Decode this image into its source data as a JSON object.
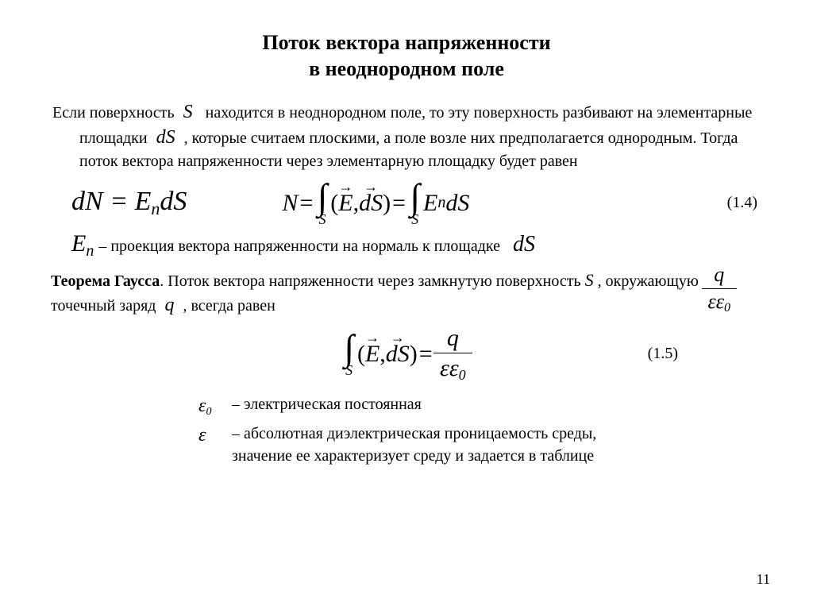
{
  "title_line1": "Поток вектора напряженности",
  "title_line2": "в неоднородном поле",
  "intro_a": "Если поверхность",
  "sym_S": "S",
  "intro_b": "находится в неоднородном поле, то эту поверхность разбивают на элементарные площадки",
  "sym_dS": "dS",
  "intro_c": ", которые считаем плоскими, а поле возле них предполагается однородным. Тогда поток вектора напряженности через элементарную площадку будет равен",
  "eq_a_lhs": "dN",
  "eq_a_eq": " = ",
  "eq_a_rhs_E": "E",
  "eq_a_rhs_sub": "n",
  "eq_a_rhs_dS": "dS",
  "eq_b_N": "N",
  "eq_b_eq1": " = ",
  "int_limit": "S",
  "eq_b_vecE": "E",
  "eq_b_vecdS": "dS",
  "eq_b_comma": ", ",
  "eq_b_paren_open": "(",
  "eq_b_paren_close": ")",
  "eq_b_eq2": " = ",
  "eq_b_En_E": "E",
  "eq_b_En_sub": "n",
  "eq_b_dS": "dS",
  "eqnum_14": "(1.4)",
  "En_E": "E",
  "En_sub": "n",
  "En_text": "– проекция вектора напряженности на нормаль  к площадке",
  "En_dS": "dS",
  "gauss_label": "Теорема Гаусса",
  "gauss_a": ". Поток вектора напряженности через замкнутую поверхность",
  "gauss_S": "S",
  "gauss_b": ", окружающую точечный заряд",
  "gauss_q": "q",
  "gauss_c": ", всегда равен",
  "frac_q": "q",
  "frac_eps": "ε",
  "frac_eps0": "ε",
  "frac_eps0_sub": "0",
  "eq15_eq": " = ",
  "eqnum_15": "(1.5)",
  "def_eps0_sym": "ε",
  "def_eps0_sub": "0",
  "def_eps0_text": "– электрическая постоянная",
  "def_eps_sym": "ε",
  "def_eps_text_a": "– абсолютная диэлектрическая проницаемость среды,",
  "def_eps_text_b": "значение ее характеризует среду и задается в таблице",
  "page_number": "11",
  "colors": {
    "text": "#000000",
    "background": "#ffffff"
  },
  "fonts": {
    "body_family": "Times New Roman",
    "title_size_pt": 26,
    "body_size_pt": 20,
    "equation_size_pt": 30
  }
}
